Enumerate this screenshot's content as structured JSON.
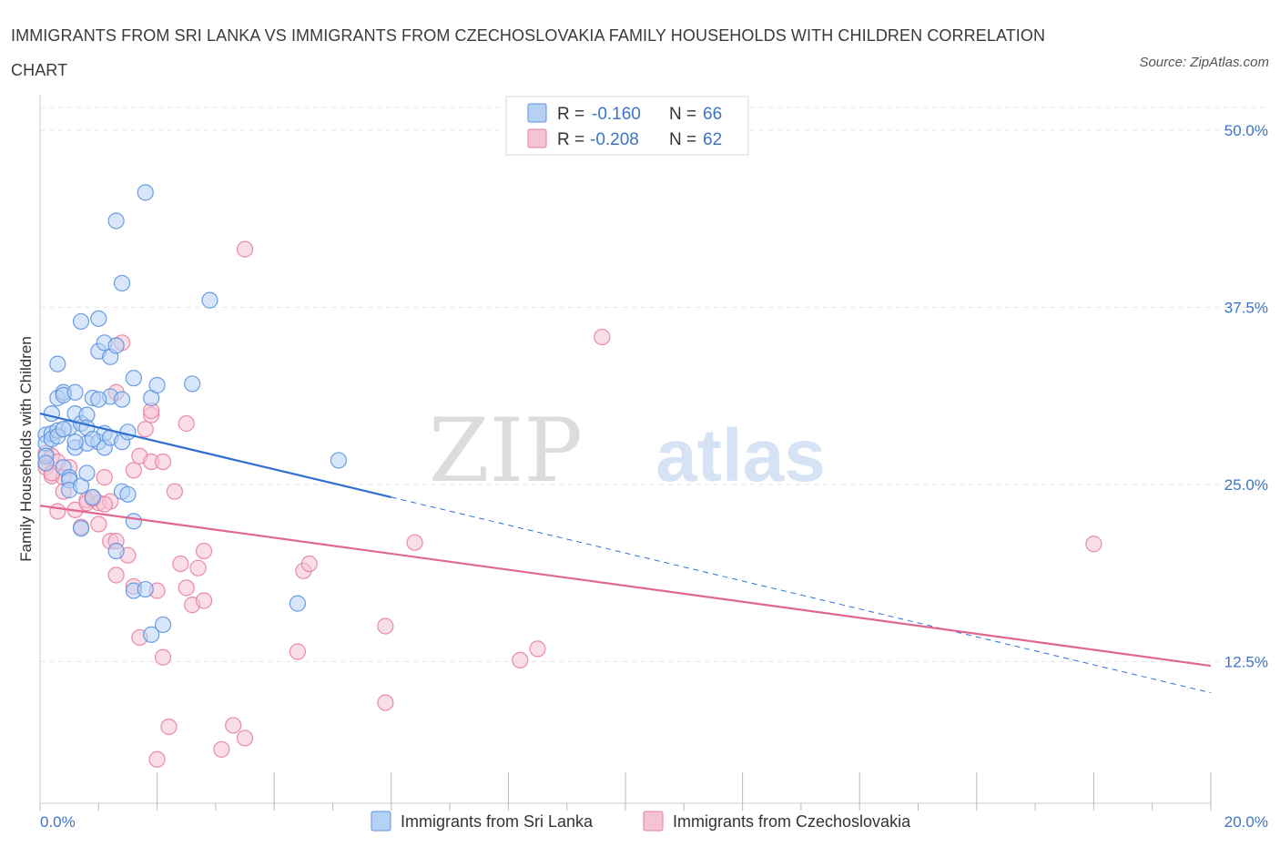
{
  "title": "IMMIGRANTS FROM SRI LANKA VS IMMIGRANTS FROM CZECHOSLOVAKIA FAMILY HOUSEHOLDS WITH CHILDREN CORRELATION CHART",
  "source": "Source: ZipAtlas.com",
  "colors": {
    "blue": "#5b93dd",
    "blue_fill": "#b7d1f5",
    "blue_line": "#2f6fd0",
    "pink": "#e87ea1",
    "pink_fill": "#f6c3d4",
    "pink_line": "#e0688f",
    "axis_text": "#3d74c4"
  },
  "legend_box": {
    "row1": {
      "r_label": "R =",
      "r_value": "-0.160",
      "n_label": "N =",
      "n_value": "66"
    },
    "row2": {
      "r_label": "R =",
      "r_value": "-0.208",
      "n_label": "N =",
      "n_value": "62"
    }
  },
  "watermark": {
    "zip": "ZIP",
    "atlas": "atlas"
  },
  "chart_data": {
    "type": "scatter",
    "title": "IMMIGRANTS FROM SRI LANKA VS IMMIGRANTS FROM CZECHOSLOVAKIA FAMILY HOUSEHOLDS WITH CHILDREN CORRELATION CHART",
    "xlabel": "",
    "ylabel": "Family Households with Children",
    "xlim": [
      0,
      20
    ],
    "ylim": [
      2.5,
      52.5
    ],
    "x_tick_labels": [
      "0.0%",
      "20.0%"
    ],
    "y_ticks": [
      12.5,
      25.0,
      37.5,
      50.0
    ],
    "y_tick_labels": [
      "12.5%",
      "25.0%",
      "37.5%",
      "50.0%"
    ],
    "grid": true,
    "legend_position": "top-center",
    "series": [
      {
        "name": "Immigrants from Sri Lanka",
        "color": "blue",
        "R": -0.16,
        "N": 66,
        "trend": {
          "x0": 0.0,
          "y0": 30.0,
          "x1": 6.0,
          "y1": 24.1,
          "dashed_to_x": 20.0,
          "dashed_to_y": 10.3
        },
        "points": [
          [
            0.1,
            28.5
          ],
          [
            0.1,
            27.9
          ],
          [
            0.1,
            27.0
          ],
          [
            0.1,
            26.5
          ],
          [
            0.2,
            30.0
          ],
          [
            0.2,
            28.6
          ],
          [
            0.2,
            28.2
          ],
          [
            0.3,
            31.1
          ],
          [
            0.3,
            33.5
          ],
          [
            0.3,
            28.8
          ],
          [
            0.4,
            31.5
          ],
          [
            0.4,
            31.3
          ],
          [
            0.4,
            26.2
          ],
          [
            0.5,
            29.0
          ],
          [
            0.5,
            25.5
          ],
          [
            0.5,
            25.3
          ],
          [
            0.5,
            24.6
          ],
          [
            0.6,
            31.5
          ],
          [
            0.6,
            30.0
          ],
          [
            0.6,
            27.6
          ],
          [
            0.7,
            36.5
          ],
          [
            0.7,
            29.3
          ],
          [
            0.7,
            24.9
          ],
          [
            0.7,
            21.9
          ],
          [
            0.8,
            29.9
          ],
          [
            0.8,
            29.0
          ],
          [
            0.8,
            27.9
          ],
          [
            0.8,
            25.8
          ],
          [
            0.9,
            31.1
          ],
          [
            0.9,
            24.1
          ],
          [
            1.0,
            36.7
          ],
          [
            1.0,
            34.4
          ],
          [
            1.0,
            28.0
          ],
          [
            1.1,
            35.0
          ],
          [
            1.1,
            28.6
          ],
          [
            1.1,
            27.6
          ],
          [
            1.2,
            34.0
          ],
          [
            1.2,
            31.2
          ],
          [
            1.2,
            28.3
          ],
          [
            1.3,
            43.6
          ],
          [
            1.3,
            34.8
          ],
          [
            1.3,
            20.3
          ],
          [
            1.4,
            39.2
          ],
          [
            1.4,
            31.0
          ],
          [
            1.4,
            28.0
          ],
          [
            1.4,
            24.5
          ],
          [
            1.5,
            28.7
          ],
          [
            1.6,
            32.5
          ],
          [
            1.6,
            22.4
          ],
          [
            1.6,
            17.5
          ],
          [
            1.8,
            45.6
          ],
          [
            1.8,
            17.6
          ],
          [
            1.9,
            31.1
          ],
          [
            1.9,
            14.4
          ],
          [
            2.0,
            32.0
          ],
          [
            2.1,
            15.1
          ],
          [
            2.6,
            32.1
          ],
          [
            2.9,
            38.0
          ],
          [
            4.4,
            16.6
          ],
          [
            5.1,
            26.7
          ],
          [
            0.3,
            28.4
          ],
          [
            0.6,
            28.0
          ],
          [
            1.0,
            31.0
          ],
          [
            1.5,
            24.3
          ],
          [
            0.9,
            28.2
          ],
          [
            0.4,
            28.9
          ]
        ]
      },
      {
        "name": "Immigrants from Czechoslovakia",
        "color": "pink",
        "R": -0.208,
        "N": 62,
        "trend": {
          "x0": 0.0,
          "y0": 23.5,
          "x1": 20.0,
          "y1": 12.2
        },
        "points": [
          [
            0.1,
            27.2
          ],
          [
            0.1,
            26.5
          ],
          [
            0.1,
            26.2
          ],
          [
            0.2,
            25.6
          ],
          [
            0.2,
            27.0
          ],
          [
            0.3,
            26.6
          ],
          [
            0.3,
            23.1
          ],
          [
            0.4,
            25.5
          ],
          [
            0.4,
            24.5
          ],
          [
            0.5,
            26.2
          ],
          [
            0.6,
            23.2
          ],
          [
            0.7,
            22.0
          ],
          [
            0.8,
            23.9
          ],
          [
            0.8,
            23.7
          ],
          [
            1.0,
            23.7
          ],
          [
            1.1,
            25.5
          ],
          [
            1.0,
            22.2
          ],
          [
            1.2,
            21.0
          ],
          [
            1.2,
            23.8
          ],
          [
            1.3,
            18.6
          ],
          [
            1.3,
            31.5
          ],
          [
            1.4,
            35.0
          ],
          [
            1.5,
            20.0
          ],
          [
            1.6,
            26.0
          ],
          [
            1.6,
            17.8
          ],
          [
            1.7,
            27.0
          ],
          [
            1.7,
            14.2
          ],
          [
            1.8,
            28.9
          ],
          [
            1.9,
            29.9
          ],
          [
            1.9,
            30.2
          ],
          [
            1.9,
            26.6
          ],
          [
            2.0,
            17.5
          ],
          [
            2.1,
            12.8
          ],
          [
            2.2,
            7.9
          ],
          [
            2.3,
            24.5
          ],
          [
            2.4,
            19.4
          ],
          [
            2.5,
            29.3
          ],
          [
            2.5,
            17.7
          ],
          [
            2.6,
            16.5
          ],
          [
            2.7,
            19.1
          ],
          [
            2.8,
            20.3
          ],
          [
            2.8,
            16.8
          ],
          [
            3.1,
            6.3
          ],
          [
            3.3,
            8.0
          ],
          [
            3.5,
            7.1
          ],
          [
            3.5,
            41.6
          ],
          [
            4.4,
            13.2
          ],
          [
            4.5,
            18.9
          ],
          [
            4.6,
            19.4
          ],
          [
            5.9,
            9.6
          ],
          [
            5.9,
            15.0
          ],
          [
            6.4,
            20.9
          ],
          [
            8.2,
            12.6
          ],
          [
            8.5,
            13.4
          ],
          [
            9.6,
            35.4
          ],
          [
            18.0,
            20.8
          ],
          [
            0.2,
            25.8
          ],
          [
            0.9,
            24.0
          ],
          [
            1.3,
            21.0
          ],
          [
            2.0,
            5.6
          ],
          [
            2.1,
            26.6
          ],
          [
            1.1,
            23.6
          ]
        ]
      }
    ]
  },
  "bottom_legend": [
    {
      "label": "Immigrants from Sri Lanka",
      "color": "blue"
    },
    {
      "label": "Immigrants from Czechoslovakia",
      "color": "pink"
    }
  ]
}
